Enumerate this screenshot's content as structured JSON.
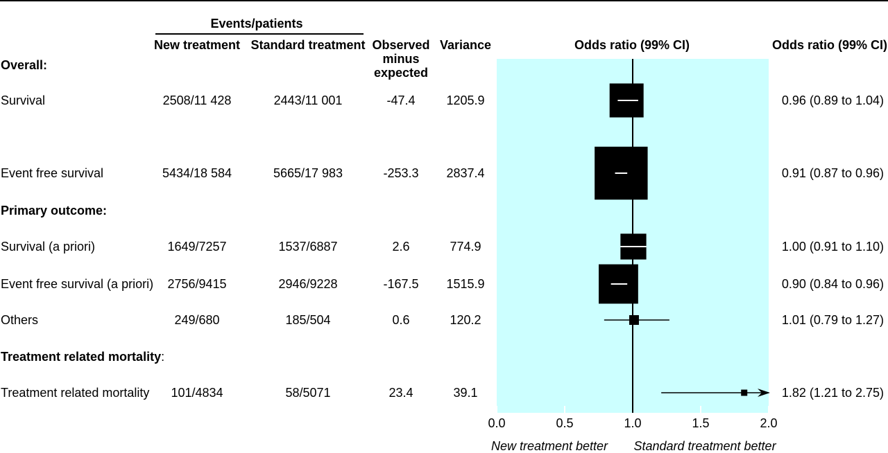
{
  "headers": {
    "events_patients": "Events/patients",
    "new_treatment": "New treatment",
    "standard_treatment": "Standard treatment",
    "observed_minus_expected": [
      "Observed",
      "minus",
      "expected"
    ],
    "variance": "Variance",
    "plot_title": "Odds ratio (99% CI)",
    "or_column": "Odds ratio (99% CI)"
  },
  "footer": {
    "left": "New treatment better",
    "right": "Standard treatment better"
  },
  "colors": {
    "plot_background": "#ccffff",
    "marker": "#000000",
    "marker_center_line": "#ffffff"
  },
  "chart_data": {
    "type": "forest",
    "title": "Odds ratio (99% CI)",
    "xlim": [
      0.0,
      2.0
    ],
    "xticks": [
      "0.0",
      "0.5",
      "1.0",
      "1.5",
      "2.0"
    ],
    "reference_line": 1.0,
    "rows": [
      {
        "kind": "section",
        "label": "Overall:"
      },
      {
        "kind": "row",
        "label": "Survival",
        "new": "2508/11 428",
        "std": "2443/11 001",
        "ome": "-47.4",
        "var": "1205.9",
        "or_text": "0.96 (0.89 to 1.04)",
        "or": 0.96,
        "ci_lo": 0.89,
        "ci_hi": 1.04,
        "box_lo": 0.83,
        "box_hi": 1.08,
        "big": true
      },
      {
        "kind": "row",
        "label": "Event free survival",
        "new": "5434/18 584",
        "std": "5665/17 983",
        "ome": "-253.3",
        "var": "2837.4",
        "or_text": "0.91 (0.87 to 0.96)",
        "or": 0.91,
        "ci_lo": 0.87,
        "ci_hi": 0.96,
        "box_lo": 0.72,
        "box_hi": 1.11,
        "big": true
      },
      {
        "kind": "section",
        "label": "Primary outcome:"
      },
      {
        "kind": "row",
        "label": "Survival (a priori)",
        "new": "1649/7257",
        "std": "1537/6887",
        "ome": "2.6",
        "var": "774.9",
        "or_text": "1.00 (0.91 to 1.10)",
        "or": 1.0,
        "ci_lo": 0.91,
        "ci_hi": 1.1,
        "box_lo": 0.91,
        "box_hi": 1.1,
        "big": true
      },
      {
        "kind": "row",
        "label": "Event free survival (a priori)",
        "new": "2756/9415",
        "std": "2946/9228",
        "ome": "-167.5",
        "var": "1515.9",
        "or_text": "0.90 (0.84 to 0.96)",
        "or": 0.9,
        "ci_lo": 0.84,
        "ci_hi": 0.96,
        "box_lo": 0.75,
        "box_hi": 1.04,
        "big": true
      },
      {
        "kind": "row",
        "label": "Others",
        "new": "249/680",
        "std": "185/504",
        "ome": "0.6",
        "var": "120.2",
        "or_text": "1.01 (0.79 to 1.27)",
        "or": 1.01,
        "ci_lo": 0.79,
        "ci_hi": 1.27,
        "big": false
      },
      {
        "kind": "section",
        "label": "Treatment related mortality",
        "suffix": ":"
      },
      {
        "kind": "row",
        "label": "Treatment related mortality",
        "new": "101/4834",
        "std": "58/5071",
        "ome": "23.4",
        "var": "39.1",
        "or_text": "1.82 (1.21 to 2.75)",
        "or": 1.82,
        "ci_lo": 1.21,
        "ci_hi": 2.75,
        "big": false,
        "arrow": true
      }
    ]
  }
}
